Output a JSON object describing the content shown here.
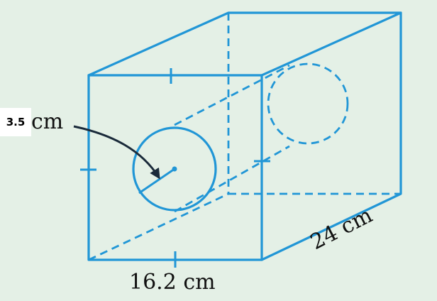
{
  "labels": {
    "radius_value": "3.5",
    "radius_unit": "cm",
    "width": "16.2 cm",
    "depth": "24 cm"
  },
  "colors": {
    "edge": "#2196d6",
    "background": "#e4f0e6",
    "arrow": "#1a2a3a"
  }
}
